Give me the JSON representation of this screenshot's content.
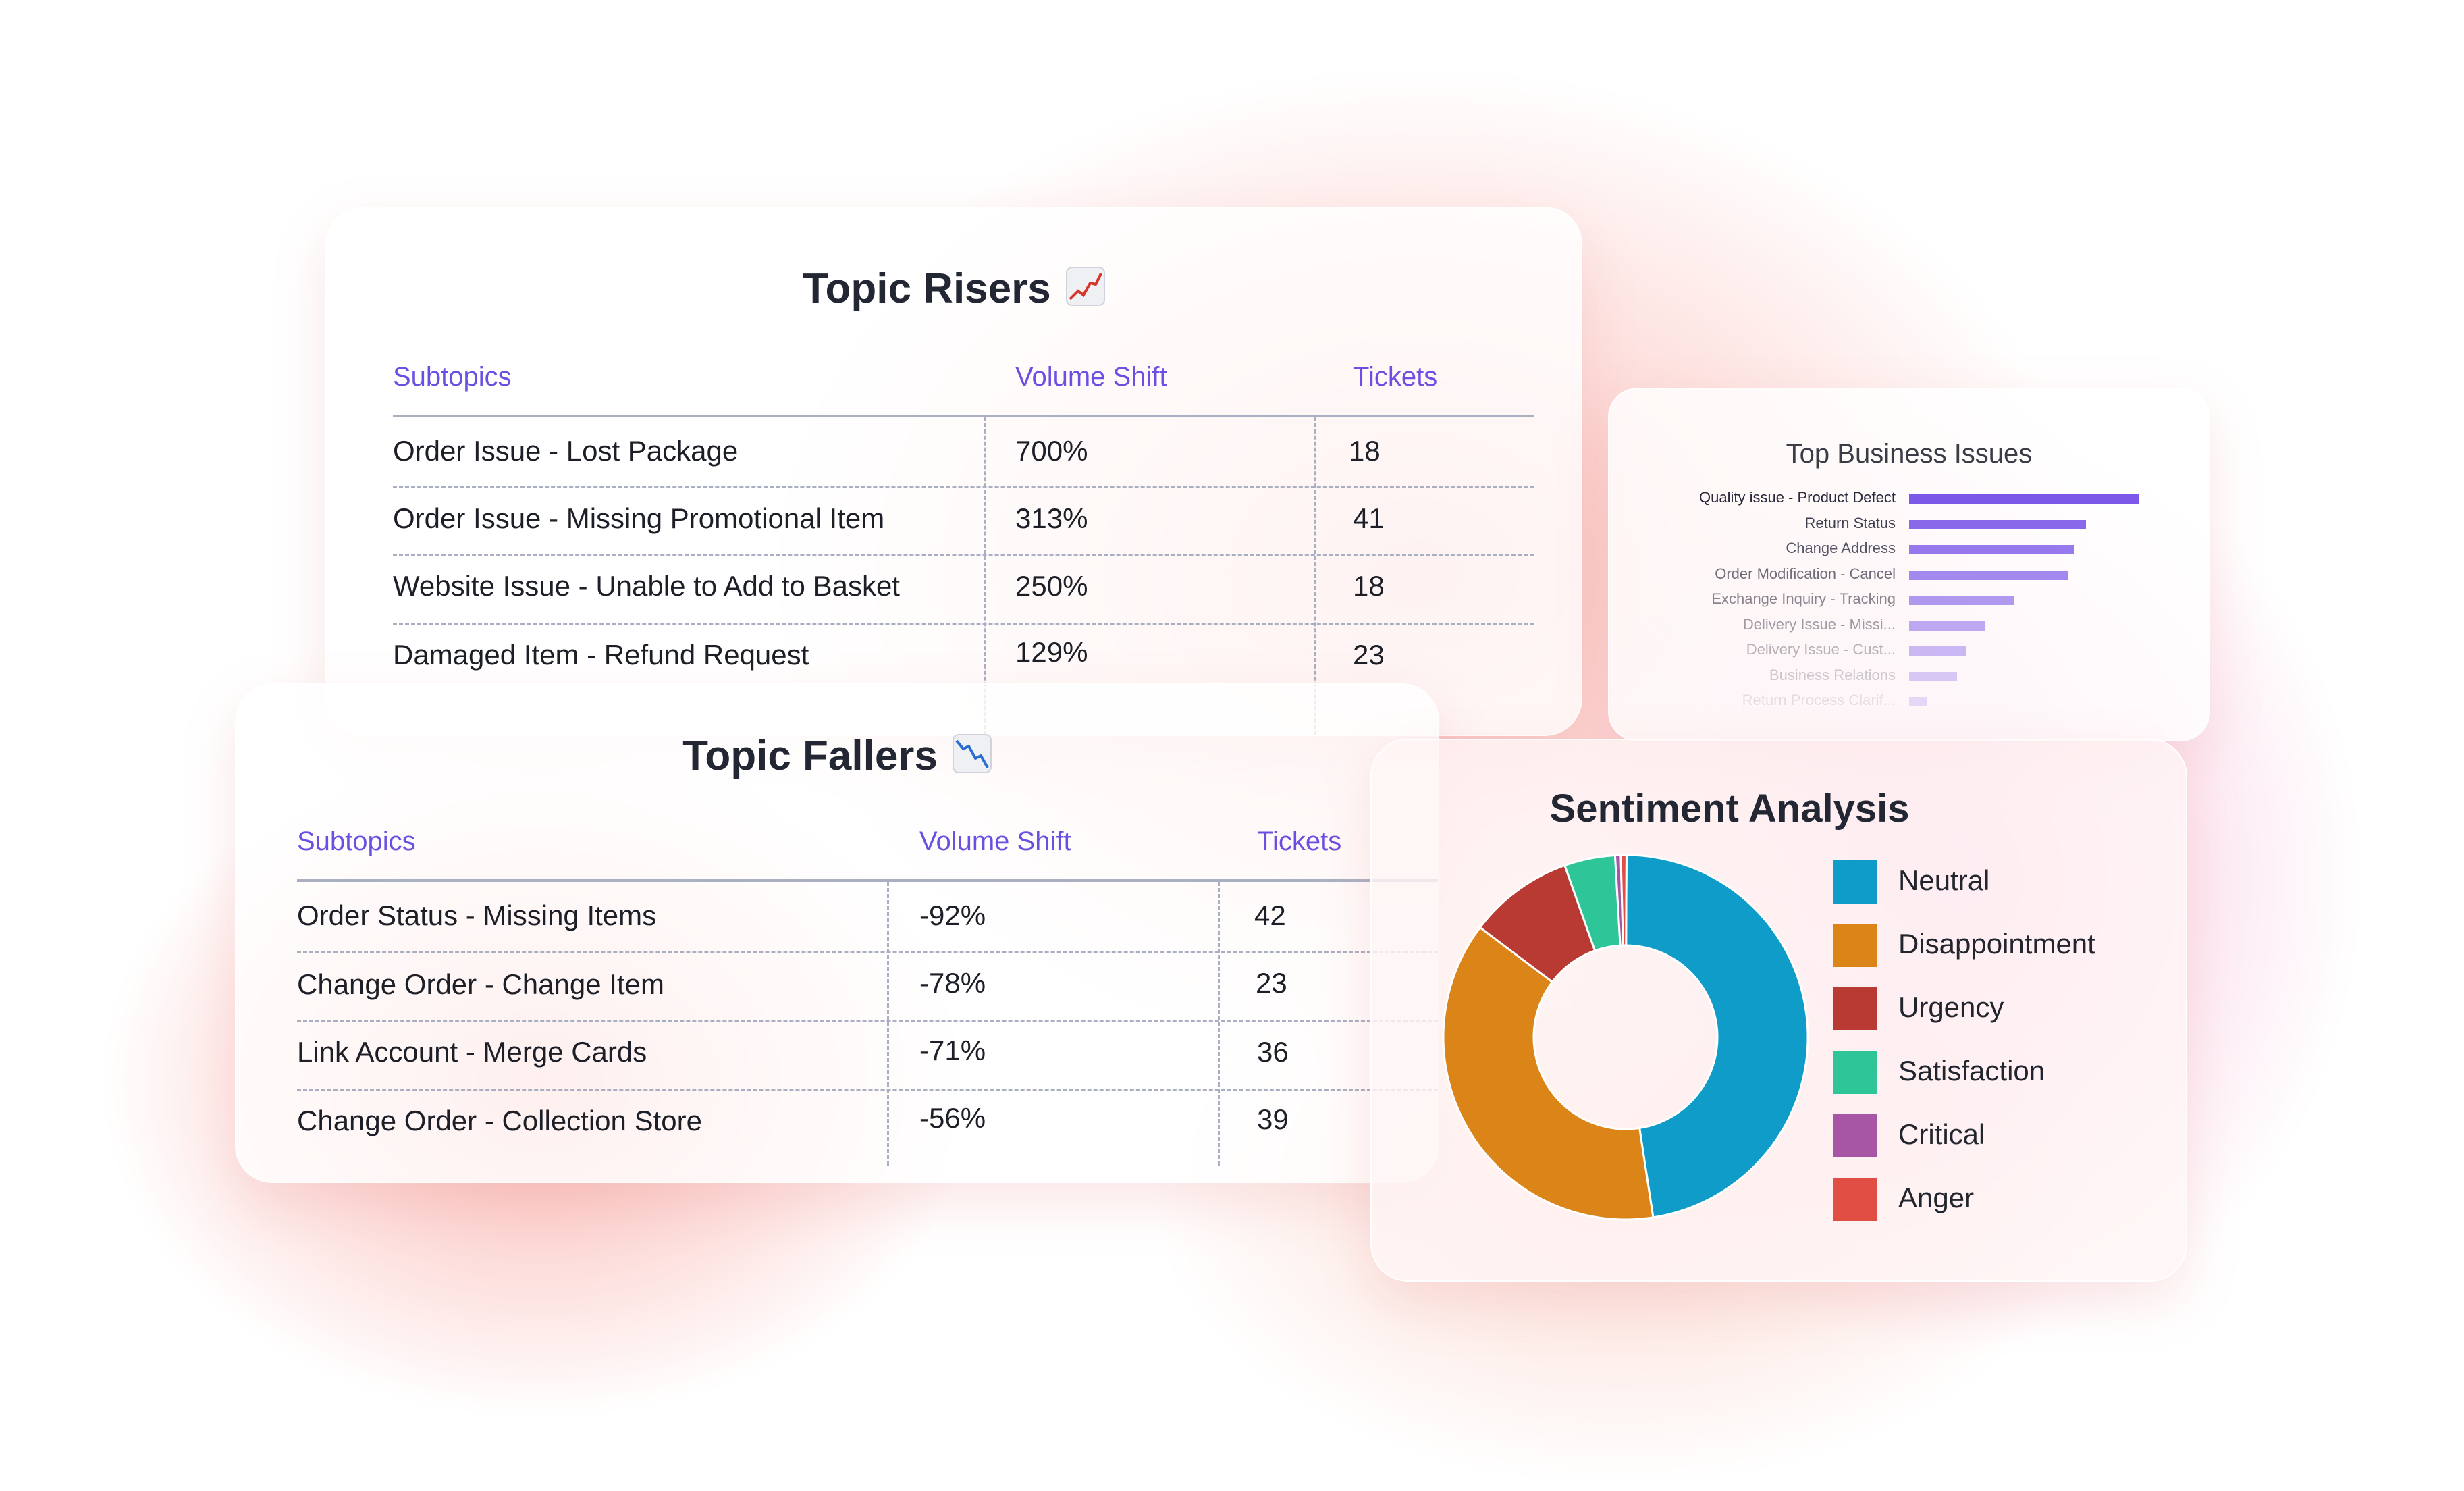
{
  "topic_risers": {
    "title": "Topic Risers",
    "icon": "chart-increasing-icon",
    "columns": [
      "Subtopics",
      "Volume Shift",
      "Tickets"
    ],
    "rows": [
      {
        "subtopic": "Order Issue - Lost Package",
        "shift": "700%",
        "tickets": "18"
      },
      {
        "subtopic": "Order Issue - Missing Promotional Item",
        "shift": "313%",
        "tickets": "41"
      },
      {
        "subtopic": "Website Issue - Unable to Add to Basket",
        "shift": "250%",
        "tickets": "18"
      },
      {
        "subtopic": "Damaged Item - Refund Request",
        "shift": "129%",
        "tickets": "23"
      }
    ]
  },
  "topic_fallers": {
    "title": "Topic Fallers",
    "icon": "chart-decreasing-icon",
    "columns": [
      "Subtopics",
      "Volume Shift",
      "Tickets"
    ],
    "rows": [
      {
        "subtopic": "Order Status - Missing Items",
        "shift": "-92%",
        "tickets": "42"
      },
      {
        "subtopic": "Change Order - Change Item",
        "shift": "-78%",
        "tickets": "23"
      },
      {
        "subtopic": "Link Account - Merge Cards",
        "shift": "-71%",
        "tickets": "36"
      },
      {
        "subtopic": "Change Order - Collection Store",
        "shift": "-56%",
        "tickets": "39"
      }
    ]
  },
  "business_issues": {
    "title": "Top Business Issues",
    "bar_color": "#7c58e8",
    "items": [
      {
        "label": "Quality issue - Product Defect",
        "value": 100
      },
      {
        "label": "Return Status",
        "value": 77
      },
      {
        "label": "Change Address",
        "value": 72
      },
      {
        "label": "Order Modification - Cancel",
        "value": 69
      },
      {
        "label": "Exchange Inquiry - Tracking",
        "value": 46
      },
      {
        "label": "Delivery Issue - Missi...",
        "value": 33
      },
      {
        "label": "Delivery Issue - Cust...",
        "value": 25
      },
      {
        "label": "Business Relations",
        "value": 21
      },
      {
        "label": "Return Process Clarif...",
        "value": 8
      }
    ]
  },
  "sentiment": {
    "title": "Sentiment Analysis",
    "legend": [
      {
        "label": "Neutral",
        "color": "#0f9cc9"
      },
      {
        "label": "Disappointment",
        "color": "#db8418"
      },
      {
        "label": "Urgency",
        "color": "#b83a33"
      },
      {
        "label": "Satisfaction",
        "color": "#2ec598"
      },
      {
        "label": "Critical",
        "color": "#a656a4"
      },
      {
        "label": "Anger",
        "color": "#e04e44"
      }
    ]
  },
  "chart_data": {
    "type": "pie",
    "title": "Sentiment Analysis",
    "categories": [
      "Neutral",
      "Disappointment",
      "Urgency",
      "Satisfaction",
      "Critical",
      "Anger"
    ],
    "values": [
      47.5,
      37.7,
      9.3,
      4.5,
      0.5,
      0.5
    ],
    "colors": [
      "#0f9cc9",
      "#db8418",
      "#b83a33",
      "#2ec598",
      "#a656a4",
      "#e04e44"
    ],
    "legend": "right"
  }
}
